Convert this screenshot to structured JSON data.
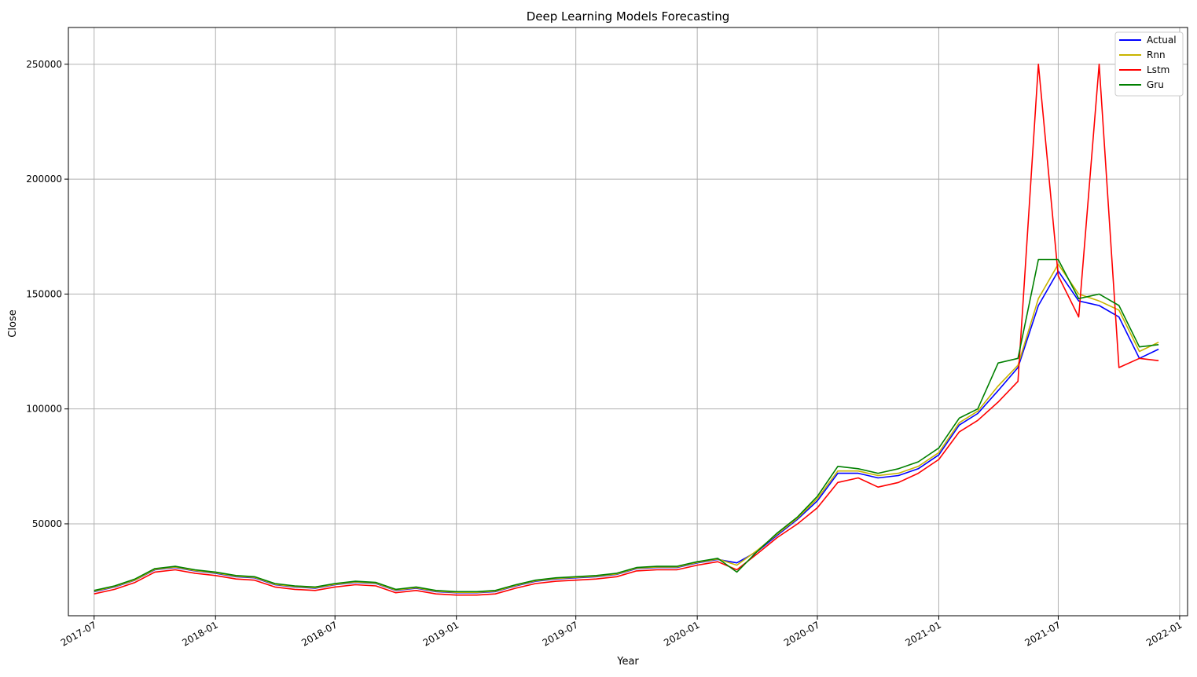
{
  "chart_data": {
    "type": "line",
    "title": "Deep Learning Models Forecasting",
    "xlabel": "Year",
    "ylabel": "Close",
    "xlim": [
      "2017-05-23",
      "2022-01-13"
    ],
    "ylim": [
      10000,
      266000
    ],
    "x_ticks": [
      "2017-07",
      "2018-01",
      "2018-07",
      "2019-01",
      "2019-07",
      "2020-01",
      "2020-07",
      "2021-01",
      "2021-07",
      "2022-01"
    ],
    "y_ticks": [
      50000,
      100000,
      150000,
      200000,
      250000
    ],
    "grid": true,
    "legend": "top-right",
    "x": [
      "2017-07-01",
      "2017-08-01",
      "2017-09-01",
      "2017-10-01",
      "2017-11-01",
      "2017-12-01",
      "2018-01-01",
      "2018-02-01",
      "2018-03-01",
      "2018-04-01",
      "2018-05-01",
      "2018-06-01",
      "2018-07-01",
      "2018-08-01",
      "2018-09-01",
      "2018-10-01",
      "2018-11-01",
      "2018-12-01",
      "2019-01-01",
      "2019-02-01",
      "2019-03-01",
      "2019-04-01",
      "2019-05-01",
      "2019-06-01",
      "2019-07-01",
      "2019-08-01",
      "2019-09-01",
      "2019-10-01",
      "2019-11-01",
      "2019-12-01",
      "2020-01-01",
      "2020-02-01",
      "2020-03-01",
      "2020-04-01",
      "2020-05-01",
      "2020-06-01",
      "2020-07-01",
      "2020-08-01",
      "2020-09-01",
      "2020-10-01",
      "2020-11-01",
      "2020-12-01",
      "2021-01-01",
      "2021-02-01",
      "2021-03-01",
      "2021-04-01",
      "2021-05-01",
      "2021-06-01",
      "2021-07-01",
      "2021-08-01",
      "2021-09-01",
      "2021-10-01",
      "2021-11-01",
      "2021-11-30"
    ],
    "series": [
      {
        "name": "Actual",
        "color": "#0000ff",
        "values": [
          20500,
          22500,
          25500,
          30000,
          31000,
          29500,
          28500,
          27000,
          26500,
          23500,
          22500,
          22000,
          23500,
          24500,
          24000,
          21000,
          22000,
          20500,
          20000,
          20000,
          20500,
          23000,
          25000,
          26000,
          26500,
          27000,
          28000,
          30500,
          31000,
          31000,
          33000,
          34500,
          33000,
          38000,
          45000,
          52000,
          60000,
          72000,
          72000,
          70000,
          71000,
          74000,
          80000,
          93000,
          98000,
          108000,
          118000,
          145000,
          160000,
          147000,
          145000,
          140000,
          122000,
          126000
        ]
      },
      {
        "name": "Rnn",
        "color": "#c8b400",
        "values": [
          20700,
          22700,
          25600,
          30200,
          31200,
          29700,
          28700,
          27200,
          26700,
          23700,
          22700,
          22200,
          23700,
          24700,
          24200,
          21200,
          22200,
          20700,
          20200,
          20200,
          20700,
          23200,
          25200,
          26200,
          26700,
          27200,
          28200,
          30700,
          31200,
          31200,
          33200,
          34700,
          32000,
          38500,
          45500,
          52500,
          61000,
          73000,
          73000,
          71000,
          72000,
          75000,
          81000,
          94000,
          99000,
          110000,
          119000,
          148000,
          163000,
          150000,
          147000,
          143000,
          125000,
          129000
        ]
      },
      {
        "name": "Lstm",
        "color": "#ff0000",
        "values": [
          19500,
          21500,
          24500,
          29000,
          30000,
          28500,
          27500,
          26000,
          25500,
          22500,
          21500,
          21000,
          22500,
          23500,
          23000,
          20000,
          21000,
          19500,
          19000,
          19000,
          19500,
          22000,
          24000,
          25000,
          25500,
          26000,
          27000,
          29500,
          30000,
          30000,
          32000,
          33500,
          30000,
          37000,
          44000,
          50000,
          57000,
          68000,
          70000,
          66000,
          68000,
          72000,
          78000,
          90000,
          95000,
          103000,
          112000,
          250000,
          158000,
          140000,
          250000,
          118000,
          122000,
          121000
        ]
      },
      {
        "name": "Gru",
        "color": "#008000",
        "values": [
          21000,
          23000,
          26000,
          30500,
          31500,
          30000,
          29000,
          27500,
          27000,
          24000,
          23000,
          22500,
          24000,
          25000,
          24500,
          21500,
          22500,
          21000,
          20500,
          20500,
          21000,
          23500,
          25500,
          26500,
          27000,
          27500,
          28500,
          31000,
          31500,
          31500,
          33500,
          35000,
          29000,
          38000,
          46000,
          53000,
          62000,
          75000,
          74000,
          72000,
          74000,
          77000,
          83000,
          96000,
          100000,
          120000,
          122000,
          165000,
          165000,
          148000,
          150000,
          145000,
          127000,
          128000
        ]
      }
    ]
  }
}
